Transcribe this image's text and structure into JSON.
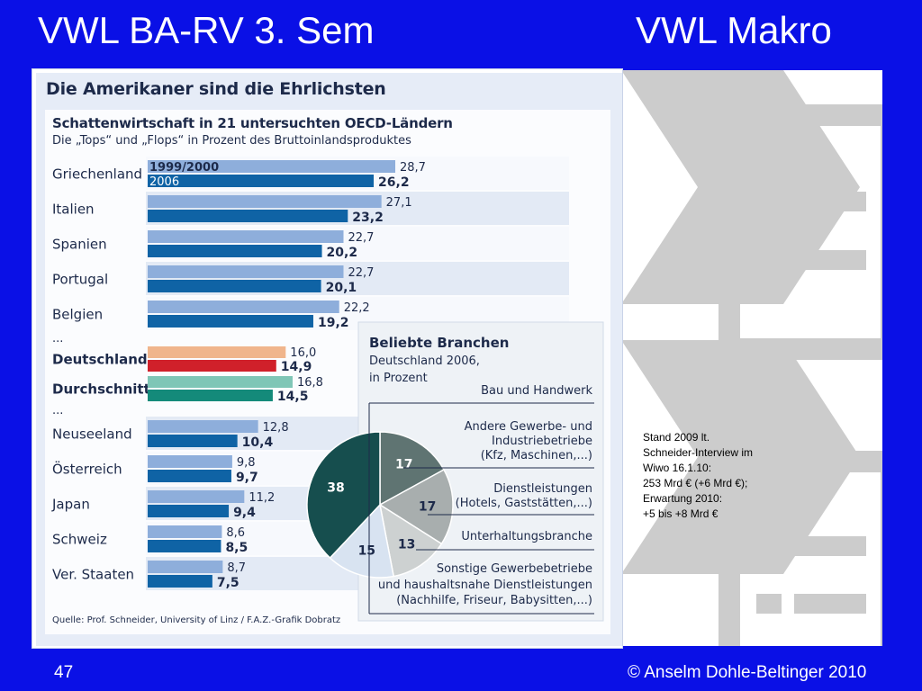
{
  "slide": {
    "title_left": "VWL BA-RV 3. Sem",
    "title_right": "VWL Makro",
    "page_number": "47",
    "footer": "© Anselm Dohle-Beltinger 2010"
  },
  "side_note": {
    "lines": [
      "Stand 2009 lt.",
      "Schneider-Interview im",
      "Wiwo 16.1.10:",
      "253 Mrd € (+6 Mrd €);",
      "Erwartung 2010:",
      "+5 bis +8 Mrd €"
    ]
  },
  "colors": {
    "background": "#0a10e6",
    "bar_light": "#8eaedb",
    "bar_dark": "#0f63a5",
    "de_light": "#f0b58c",
    "de_dark": "#d0202a",
    "avg_light": "#7fc6b6",
    "avg_dark": "#148a7a",
    "pie_slices": [
      "#5f7472",
      "#a8aeae",
      "#cdd1d1",
      "#d8e3f1",
      "#164e4e"
    ]
  },
  "chart_data": [
    {
      "type": "bar",
      "title": "Die Amerikaner sind die Ehrlichsten",
      "subtitle": "Schattenwirtschaft in 21 untersuchten OECD-Ländern",
      "description": "Die „Tops“ und „Flops“ in Prozent des Bruttoinlandsproduktes",
      "source": "Quelle: Prof. Schneider, University of Linz / F.A.Z.-Grafik Dobratz",
      "series_labels": [
        "1999/2000",
        "2006"
      ],
      "rows": [
        {
          "label": "Griechenland",
          "v1": 28.7,
          "v2": 26.2,
          "t1": "28,7",
          "t2": "26,2",
          "style": "normal"
        },
        {
          "label": "Italien",
          "v1": 27.1,
          "v2": 23.2,
          "t1": "27,1",
          "t2": "23,2",
          "style": "normal"
        },
        {
          "label": "Spanien",
          "v1": 22.7,
          "v2": 20.2,
          "t1": "22,7",
          "t2": "20,2",
          "style": "normal"
        },
        {
          "label": "Portugal",
          "v1": 22.7,
          "v2": 20.1,
          "t1": "22,7",
          "t2": "20,1",
          "style": "normal"
        },
        {
          "label": "Belgien",
          "v1": 22.2,
          "v2": 19.2,
          "t1": "22,2",
          "t2": "19,2",
          "style": "normal"
        },
        {
          "label": "...",
          "style": "ellipsis"
        },
        {
          "label": "Deutschland",
          "v1": 16.0,
          "v2": 14.9,
          "t1": "16,0",
          "t2": "14,9",
          "style": "de"
        },
        {
          "label": "Durchschnitt",
          "v1": 16.8,
          "v2": 14.5,
          "t1": "16,8",
          "t2": "14,5",
          "style": "avg"
        },
        {
          "label": "...",
          "style": "ellipsis"
        },
        {
          "label": "Neuseeland",
          "v1": 12.8,
          "v2": 10.4,
          "t1": "12,8",
          "t2": "10,4",
          "style": "normal"
        },
        {
          "label": "Österreich",
          "v1": 9.8,
          "v2": 9.7,
          "t1": "9,8",
          "t2": "9,7",
          "style": "normal"
        },
        {
          "label": "Japan",
          "v1": 11.2,
          "v2": 9.4,
          "t1": "11,2",
          "t2": "9,4",
          "style": "normal"
        },
        {
          "label": "Schweiz",
          "v1": 8.6,
          "v2": 8.5,
          "t1": "8,6",
          "t2": "8,5",
          "style": "normal"
        },
        {
          "label": "Ver. Staaten",
          "v1": 8.7,
          "v2": 7.5,
          "t1": "8,7",
          "t2": "7,5",
          "style": "normal"
        }
      ]
    },
    {
      "type": "pie",
      "title": "Beliebte Branchen",
      "subtitle_lines": [
        "Deutschland 2006,",
        "in Prozent"
      ],
      "slices": [
        {
          "label": "Bau und Handwerk",
          "value": 38,
          "text": "38"
        },
        {
          "label": "Andere Gewerbe- und Industriebetriebe (Kfz, Maschinen,...)",
          "value": 17,
          "text": "17"
        },
        {
          "label": "Dienstleistungen (Hotels, Gaststätten,...)",
          "value": 17,
          "text": "17"
        },
        {
          "label": "Unterhaltungsbranche",
          "value": 13,
          "text": "13"
        },
        {
          "label": "Sonstige Gewerbebetriebe und haushaltsnahe Dienstleistungen (Nachhilfe, Friseur, Babysitten,...)",
          "value": 15,
          "text": "15"
        }
      ],
      "legend": [
        [
          "Bau und Handwerk"
        ],
        [
          "Andere Gewerbe- und",
          "Industriebetriebe",
          "(Kfz, Maschinen,...)"
        ],
        [
          "Dienstleistungen",
          "(Hotels, Gaststätten,...)"
        ],
        [
          "Unterhaltungsbranche"
        ],
        [
          "Sonstige Gewerbebetriebe",
          "und haushaltsnahe Dienstleistungen",
          "(Nachhilfe, Friseur, Babysitten,...)"
        ]
      ]
    }
  ]
}
